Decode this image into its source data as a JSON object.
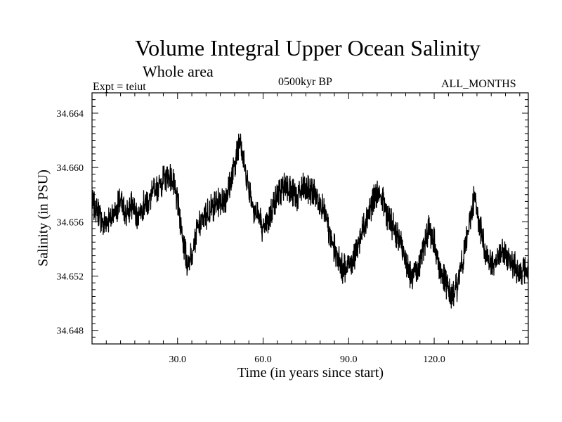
{
  "chart_data": {
    "type": "line",
    "title": "Volume Integral Upper Ocean Salinity",
    "subtitle": "Whole area",
    "experiment_label": "Expt = teiut",
    "period_label": "0500kyr BP",
    "months_label": "ALL_MONTHS",
    "xlabel": "Time (in years since start)",
    "ylabel": "Salinity (in PSU)",
    "xlim": [
      0,
      153
    ],
    "ylim": [
      34.647,
      34.6655
    ],
    "xticks": [
      30,
      60,
      90,
      120
    ],
    "xtick_labels": [
      "30.0",
      "60.0",
      "90.0",
      "120.0"
    ],
    "yticks": [
      34.648,
      34.652,
      34.656,
      34.66,
      34.664
    ],
    "ytick_labels": [
      "34.648",
      "34.652",
      "34.656",
      "34.660",
      "34.664"
    ],
    "line_color": "#000000",
    "series": [
      {
        "name": "Salinity",
        "x": [
          0,
          2,
          4,
          6,
          8,
          10,
          12,
          14,
          16,
          18,
          20,
          22,
          24,
          26,
          28,
          30,
          32,
          33.5,
          35,
          37,
          39,
          41,
          43,
          45,
          47,
          49,
          51,
          52,
          53,
          55,
          57,
          59,
          60,
          62,
          64,
          66,
          68,
          70,
          72,
          74,
          76,
          78,
          80,
          82,
          84,
          86,
          88,
          90,
          92,
          94,
          96,
          98,
          100,
          102,
          104,
          106,
          108,
          110,
          112,
          114,
          116,
          118,
          120,
          122,
          124,
          126,
          128,
          130,
          132,
          134,
          136,
          138,
          140,
          142,
          144,
          146,
          148,
          150,
          153
        ],
        "y": [
          34.6573,
          34.6568,
          34.6558,
          34.6562,
          34.6568,
          34.6575,
          34.6565,
          34.6572,
          34.6565,
          34.6572,
          34.6576,
          34.6583,
          34.6588,
          34.6593,
          34.6592,
          34.6575,
          34.6545,
          34.6528,
          34.6538,
          34.6555,
          34.6562,
          34.6568,
          34.6572,
          34.6575,
          34.6578,
          34.6592,
          34.6612,
          34.6625,
          34.6605,
          34.6585,
          34.6568,
          34.6562,
          34.6552,
          34.6562,
          34.6575,
          34.6582,
          34.6588,
          34.6582,
          34.6578,
          34.6585,
          34.6583,
          34.6582,
          34.6575,
          34.6562,
          34.6545,
          34.6535,
          34.6525,
          34.6528,
          34.6535,
          34.6548,
          34.6562,
          34.6572,
          34.6582,
          34.6575,
          34.6562,
          34.6555,
          34.6545,
          34.6532,
          34.6518,
          34.6522,
          34.6538,
          34.6555,
          34.6545,
          34.6525,
          34.6515,
          34.6505,
          34.6512,
          34.6532,
          34.6553,
          34.6578,
          34.6558,
          34.6538,
          34.6528,
          34.6532,
          34.6538,
          34.6532,
          34.6528,
          34.6523,
          34.6524
        ]
      }
    ]
  }
}
